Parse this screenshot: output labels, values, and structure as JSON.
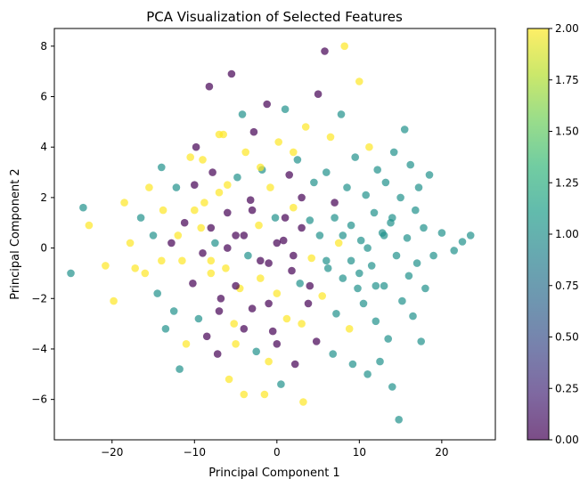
{
  "chart_data": {
    "type": "scatter",
    "title": "PCA Visualization of Selected Features",
    "xlabel": "Principal Component 1",
    "ylabel": "Principal Component 2",
    "xlim": [
      -27,
      26.5
    ],
    "ylim": [
      -7.6,
      8.7
    ],
    "x_ticks": [
      -20,
      -10,
      0,
      10,
      20
    ],
    "x_tick_labels": [
      "−20",
      "−10",
      "0",
      "10",
      "20"
    ],
    "y_ticks": [
      -6,
      -4,
      -2,
      0,
      2,
      4,
      6,
      8
    ],
    "y_tick_labels": [
      "−6",
      "−4",
      "−2",
      "0",
      "2",
      "4",
      "6",
      "8"
    ],
    "grid": false,
    "alpha": 0.7,
    "colormap": {
      "name": "viridis",
      "vmin": 0.0,
      "vmax": 2.0,
      "ticks": [
        0.0,
        0.25,
        0.5,
        0.75,
        1.0,
        1.25,
        1.5,
        1.75,
        2.0
      ],
      "tick_labels": [
        "0.00",
        "0.25",
        "0.50",
        "0.75",
        "1.00",
        "1.25",
        "1.50",
        "1.75",
        "2.00"
      ],
      "stops": [
        "#440154",
        "#482878",
        "#3e4a89",
        "#31688e",
        "#26828e",
        "#1f9e89",
        "#35b779",
        "#6ece58",
        "#b5de2b",
        "#fde725"
      ]
    },
    "class_colors": {
      "0": "#440154",
      "1": "#21918c",
      "2": "#fde725"
    },
    "points": [
      [
        -25,
        -1,
        1
      ],
      [
        -23.5,
        1.6,
        1
      ],
      [
        -22.8,
        0.9,
        2
      ],
      [
        -20.8,
        -0.7,
        2
      ],
      [
        -19.8,
        -2.1,
        2
      ],
      [
        -18.5,
        1.8,
        2
      ],
      [
        -17.8,
        0.2,
        2
      ],
      [
        -17.2,
        -0.8,
        2
      ],
      [
        -16.5,
        1.2,
        1
      ],
      [
        -16,
        -1,
        2
      ],
      [
        -15.5,
        2.4,
        2
      ],
      [
        -15,
        0.5,
        1
      ],
      [
        -14.5,
        -1.8,
        1
      ],
      [
        -14,
        3.2,
        1
      ],
      [
        -13.8,
        1.5,
        2
      ],
      [
        -13.5,
        -3.2,
        1
      ],
      [
        -12.8,
        0.2,
        0
      ],
      [
        -12.5,
        -2.5,
        1
      ],
      [
        -12.2,
        2.4,
        1
      ],
      [
        -11.8,
        -4.8,
        1
      ],
      [
        -11.5,
        -0.5,
        2
      ],
      [
        -11.2,
        1,
        0
      ],
      [
        -11,
        -3.8,
        2
      ],
      [
        -10.5,
        3.6,
        2
      ],
      [
        -10.2,
        -1.4,
        0
      ],
      [
        -10,
        2.5,
        0
      ],
      [
        -9.8,
        4,
        0
      ],
      [
        -9.5,
        -2.8,
        1
      ],
      [
        -9.2,
        0.8,
        2
      ],
      [
        -9,
        -0.2,
        0
      ],
      [
        -8.8,
        1.8,
        2
      ],
      [
        -8.5,
        -3.5,
        0
      ],
      [
        -8.2,
        6.4,
        0
      ],
      [
        -8,
        -1,
        2
      ],
      [
        -7.8,
        3,
        0
      ],
      [
        -7.5,
        0.2,
        1
      ],
      [
        -7.2,
        -4.2,
        0
      ],
      [
        -7,
        2.2,
        2
      ],
      [
        -6.8,
        -2,
        0
      ],
      [
        -6.5,
        4.5,
        2
      ],
      [
        -6.2,
        -0.8,
        2
      ],
      [
        -6,
        1.4,
        0
      ],
      [
        -5.8,
        -5.2,
        2
      ],
      [
        -5.5,
        6.9,
        0
      ],
      [
        -5.2,
        -3,
        2
      ],
      [
        -5,
        0.5,
        0
      ],
      [
        -4.8,
        2.8,
        1
      ],
      [
        -4.5,
        -1.6,
        2
      ],
      [
        -4.2,
        5.3,
        1
      ],
      [
        -4,
        -5.8,
        2
      ],
      [
        -3.8,
        3.8,
        2
      ],
      [
        -3.5,
        -0.3,
        1
      ],
      [
        -3.2,
        1.9,
        0
      ],
      [
        -3,
        -2.4,
        0
      ],
      [
        -2.8,
        4.6,
        0
      ],
      [
        -2.5,
        -4.1,
        1
      ],
      [
        -2.2,
        0.9,
        2
      ],
      [
        -2,
        -1.2,
        2
      ],
      [
        -1.8,
        3.1,
        1
      ],
      [
        -1.5,
        -5.8,
        2
      ],
      [
        -1.2,
        5.7,
        0
      ],
      [
        -1,
        -0.6,
        0
      ],
      [
        -0.8,
        2.4,
        2
      ],
      [
        -0.5,
        -3.3,
        0
      ],
      [
        -0.2,
        1.2,
        1
      ],
      [
        0,
        -1.8,
        2
      ],
      [
        0.2,
        4.2,
        2
      ],
      [
        0.5,
        -5.4,
        1
      ],
      [
        0.8,
        0.3,
        0
      ],
      [
        1,
        5.5,
        1
      ],
      [
        1.2,
        -2.8,
        2
      ],
      [
        1.5,
        2.9,
        0
      ],
      [
        1.8,
        -0.9,
        0
      ],
      [
        2,
        1.6,
        2
      ],
      [
        2.2,
        -4.6,
        0
      ],
      [
        2.5,
        3.5,
        1
      ],
      [
        2.8,
        -1.4,
        1
      ],
      [
        3,
        0.8,
        0
      ],
      [
        3.2,
        -6.1,
        2
      ],
      [
        3.5,
        4.8,
        2
      ],
      [
        3.8,
        -2.2,
        0
      ],
      [
        4,
        1.1,
        1
      ],
      [
        4.2,
        -0.4,
        2
      ],
      [
        4.5,
        2.6,
        1
      ],
      [
        4.8,
        -3.7,
        0
      ],
      [
        5,
        6.1,
        0
      ],
      [
        5.2,
        0.5,
        1
      ],
      [
        5.5,
        -1.9,
        2
      ],
      [
        5.8,
        7.8,
        0
      ],
      [
        6,
        3,
        1
      ],
      [
        6.2,
        -0.8,
        1
      ],
      [
        6.5,
        4.4,
        2
      ],
      [
        6.8,
        -4.2,
        1
      ],
      [
        7,
        1.8,
        0
      ],
      [
        7.2,
        -2.6,
        1
      ],
      [
        7.5,
        0.2,
        2
      ],
      [
        7.8,
        5.3,
        1
      ],
      [
        8,
        -1.2,
        1
      ],
      [
        8.2,
        8,
        2
      ],
      [
        8.5,
        2.4,
        1
      ],
      [
        8.8,
        -3.2,
        2
      ],
      [
        9,
        0.9,
        1
      ],
      [
        9.2,
        -4.6,
        1
      ],
      [
        9.5,
        3.6,
        1
      ],
      [
        9.8,
        -1.6,
        1
      ],
      [
        10,
        6.6,
        2
      ],
      [
        10.2,
        0.3,
        1
      ],
      [
        10.5,
        -2.2,
        1
      ],
      [
        10.8,
        2.1,
        1
      ],
      [
        11,
        -5,
        1
      ],
      [
        11.2,
        4,
        2
      ],
      [
        11.5,
        -0.7,
        1
      ],
      [
        11.8,
        1.4,
        1
      ],
      [
        12,
        -2.9,
        1
      ],
      [
        12.2,
        3.1,
        1
      ],
      [
        12.5,
        -4.5,
        1
      ],
      [
        12.8,
        0.6,
        1
      ],
      [
        13,
        -1.5,
        1
      ],
      [
        13.2,
        2.6,
        1
      ],
      [
        13.5,
        -3.6,
        1
      ],
      [
        13.8,
        1,
        1
      ],
      [
        14,
        -5.5,
        1
      ],
      [
        14.2,
        3.8,
        1
      ],
      [
        14.5,
        -0.3,
        1
      ],
      [
        14.8,
        -6.8,
        1
      ],
      [
        15,
        2,
        1
      ],
      [
        15.2,
        -2.1,
        1
      ],
      [
        15.5,
        4.7,
        1
      ],
      [
        15.8,
        0.4,
        1
      ],
      [
        16,
        -1.1,
        1
      ],
      [
        16.2,
        3.3,
        1
      ],
      [
        16.5,
        -2.7,
        1
      ],
      [
        16.8,
        1.5,
        1
      ],
      [
        17,
        -0.6,
        1
      ],
      [
        17.2,
        2.4,
        1
      ],
      [
        17.5,
        -3.7,
        1
      ],
      [
        17.8,
        0.8,
        1
      ],
      [
        18,
        -1.6,
        1
      ],
      [
        18.5,
        2.9,
        1
      ],
      [
        19,
        -0.3,
        1
      ],
      [
        20,
        0.6,
        1
      ],
      [
        21.5,
        -0.1,
        1
      ],
      [
        22.5,
        0.25,
        1
      ],
      [
        23.5,
        0.5,
        1
      ],
      [
        -6,
        0,
        0
      ],
      [
        -4,
        0.5,
        0
      ],
      [
        -2,
        -0.5,
        0
      ],
      [
        0,
        0.2,
        0
      ],
      [
        2,
        -0.3,
        0
      ],
      [
        -8,
        0.8,
        0
      ],
      [
        -3,
        1.5,
        0
      ],
      [
        1,
        1.2,
        0
      ],
      [
        -5,
        -1.5,
        0
      ],
      [
        -1,
        -2.2,
        0
      ],
      [
        3,
        2,
        0
      ],
      [
        -7,
        -2.5,
        0
      ],
      [
        -4,
        -3.2,
        0
      ],
      [
        0,
        -3.8,
        0
      ],
      [
        4,
        -1.5,
        0
      ],
      [
        6,
        -0.5,
        1
      ],
      [
        8,
        0.5,
        1
      ],
      [
        10,
        -1,
        1
      ],
      [
        7,
        1.2,
        1
      ],
      [
        9,
        -0.5,
        1
      ],
      [
        11,
        0,
        1
      ],
      [
        13,
        0.5,
        1
      ],
      [
        12,
        -1.5,
        1
      ],
      [
        14,
        1.2,
        1
      ],
      [
        -10,
        1.5,
        2
      ],
      [
        -12,
        0.5,
        2
      ],
      [
        -8,
        -0.5,
        2
      ],
      [
        -14,
        -0.5,
        2
      ],
      [
        -6,
        2.5,
        2
      ],
      [
        -9,
        3.5,
        2
      ],
      [
        -2,
        3.2,
        2
      ],
      [
        2,
        3.8,
        2
      ],
      [
        -5,
        -3.8,
        2
      ],
      [
        -1,
        -4.5,
        2
      ],
      [
        3,
        -3,
        2
      ],
      [
        -7,
        4.5,
        2
      ]
    ]
  }
}
